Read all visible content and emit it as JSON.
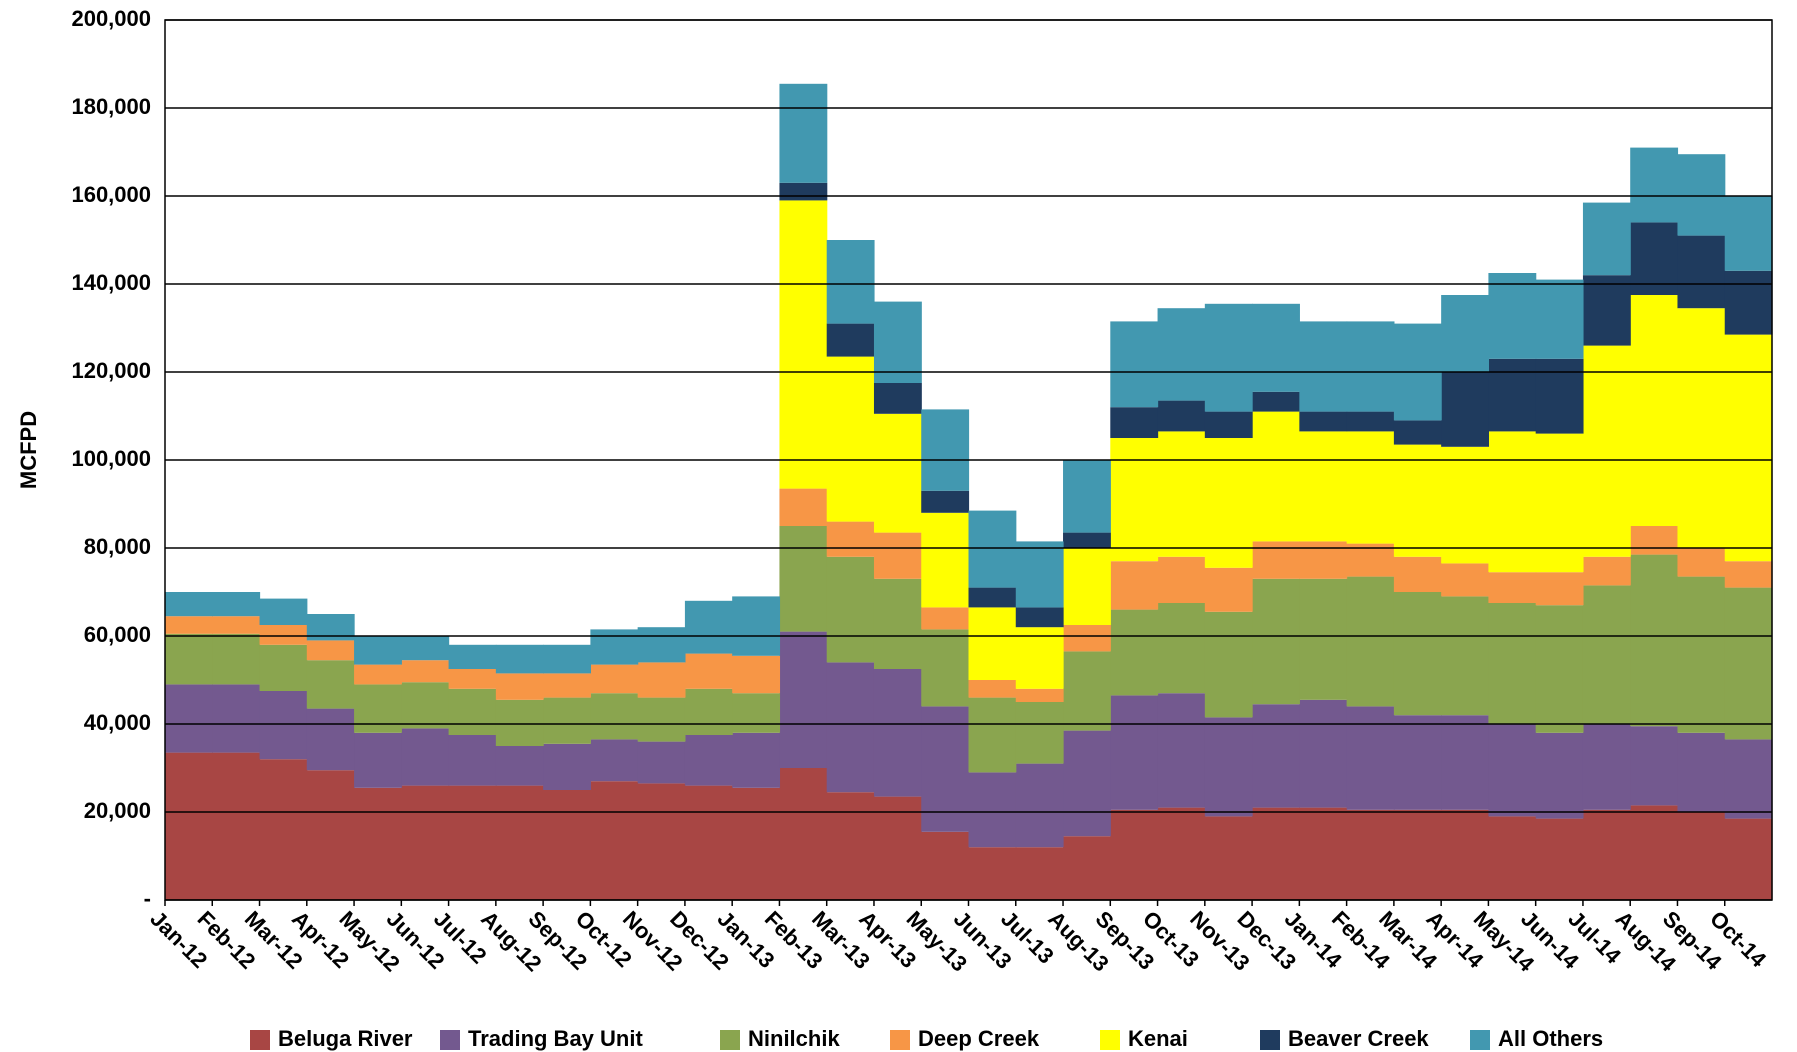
{
  "chart_data": {
    "type": "stacked-area-step",
    "y_label": "MCFPD",
    "categories": [
      "Jan-12",
      "Feb-12",
      "Mar-12",
      "Apr-12",
      "May-12",
      "Jun-12",
      "Jul-12",
      "Aug-12",
      "Sep-12",
      "Oct-12",
      "Nov-12",
      "Dec-12",
      "Jan-13",
      "Feb-13",
      "Mar-13",
      "Apr-13",
      "May-13",
      "Jun-13",
      "Jul-13",
      "Aug-13",
      "Sep-13",
      "Oct-13",
      "Nov-13",
      "Dec-13",
      "Jan-14",
      "Feb-14",
      "Mar-14",
      "Apr-14",
      "May-14",
      "Jun-14",
      "Jul-14",
      "Aug-14",
      "Sep-14",
      "Oct-14"
    ],
    "series": [
      {
        "name": "Beluga River",
        "color": "#a84644",
        "values": [
          33500,
          33500,
          32000,
          29500,
          25500,
          26000,
          26000,
          26000,
          25000,
          27000,
          26500,
          26000,
          25500,
          30000,
          24500,
          23500,
          15500,
          12000,
          12000,
          14500,
          20500,
          21000,
          19000,
          21000,
          21000,
          20500,
          20500,
          20500,
          19000,
          18500,
          20500,
          21500,
          20000,
          18500
        ]
      },
      {
        "name": "Trading Bay Unit",
        "color": "#73598f",
        "values": [
          15500,
          15500,
          15500,
          14000,
          12500,
          13000,
          11500,
          9000,
          10500,
          9500,
          9500,
          11500,
          12500,
          31000,
          29500,
          29000,
          28500,
          17000,
          19000,
          24000,
          26000,
          26000,
          22500,
          23500,
          24500,
          23500,
          21500,
          21500,
          21000,
          19500,
          19500,
          18000,
          18000,
          18000
        ]
      },
      {
        "name": "Ninilchik",
        "color": "#8aa54f",
        "values": [
          11500,
          11500,
          10500,
          11000,
          11000,
          10500,
          10500,
          10500,
          10500,
          10500,
          10000,
          10500,
          9000,
          24000,
          24000,
          20500,
          17500,
          17000,
          14000,
          18000,
          19500,
          20500,
          24000,
          28500,
          27500,
          29500,
          28000,
          27000,
          27500,
          29000,
          31500,
          39000,
          35500,
          34500
        ]
      },
      {
        "name": "Deep Creek",
        "color": "#f79646",
        "values": [
          4000,
          4000,
          4500,
          4500,
          4500,
          5000,
          4500,
          6000,
          5500,
          6500,
          8000,
          8000,
          8500,
          8500,
          8000,
          10500,
          5000,
          4000,
          3000,
          6000,
          11000,
          10500,
          10000,
          8500,
          8500,
          7500,
          8000,
          7500,
          7000,
          7500,
          6500,
          6500,
          6500,
          6000
        ]
      },
      {
        "name": "Kenai",
        "color": "#ffff00",
        "values": [
          0,
          0,
          0,
          0,
          0,
          0,
          0,
          0,
          0,
          0,
          0,
          0,
          0,
          65500,
          37500,
          27000,
          21500,
          16500,
          14000,
          17500,
          28000,
          28500,
          29500,
          29500,
          25000,
          25500,
          25500,
          26500,
          32000,
          31500,
          48000,
          52500,
          54500,
          51500
        ]
      },
      {
        "name": "Beaver Creek",
        "color": "#1f3b5e",
        "values": [
          0,
          0,
          0,
          0,
          0,
          0,
          0,
          0,
          0,
          0,
          0,
          0,
          0,
          4000,
          7500,
          7000,
          5000,
          4500,
          4500,
          3500,
          7000,
          7000,
          6000,
          4500,
          4500,
          4500,
          5500,
          17000,
          16500,
          17000,
          16000,
          16500,
          16500,
          14500
        ]
      },
      {
        "name": "All Others",
        "color": "#4298b0",
        "values": [
          5500,
          5500,
          6000,
          6000,
          6500,
          5500,
          5500,
          6500,
          6500,
          8000,
          8000,
          12000,
          13500,
          22500,
          19000,
          18500,
          18500,
          17500,
          15000,
          16500,
          19500,
          21000,
          24500,
          20000,
          20500,
          20500,
          22000,
          17500,
          19500,
          18000,
          16500,
          17000,
          18500,
          17000
        ]
      }
    ],
    "ylim": [
      0,
      200000
    ],
    "yticks": [
      {
        "value": 0,
        "label": "-"
      },
      {
        "value": 20000,
        "label": "20,000"
      },
      {
        "value": 40000,
        "label": "40,000"
      },
      {
        "value": 60000,
        "label": "60,000"
      },
      {
        "value": 80000,
        "label": "80,000"
      },
      {
        "value": 100000,
        "label": "100,000"
      },
      {
        "value": 120000,
        "label": "120,000"
      },
      {
        "value": 140000,
        "label": "140,000"
      },
      {
        "value": 160000,
        "label": "160,000"
      },
      {
        "value": 180000,
        "label": "180,000"
      },
      {
        "value": 200000,
        "label": "200,000"
      }
    ],
    "grid": true,
    "legend": "bottom"
  }
}
